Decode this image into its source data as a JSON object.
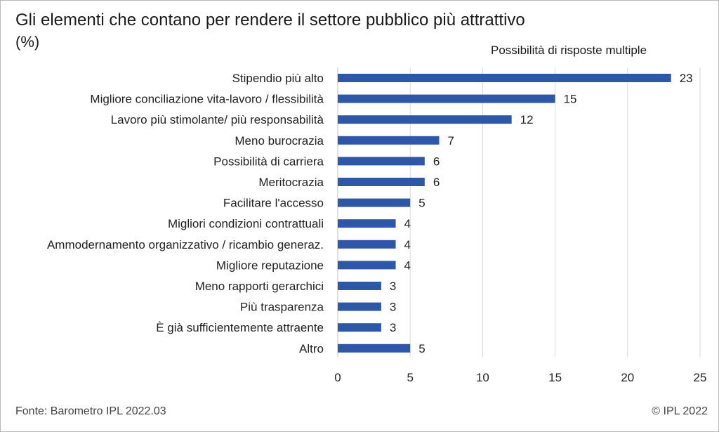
{
  "header": {
    "title": "Gli elementi che contano per rendere il settore pubblico più attrattivo",
    "unit": "(%)",
    "note": "Possibilità di risposte multiple"
  },
  "footer": {
    "source": "Fonte: Barometro IPL 2022.03",
    "copyright": "© IPL 2022"
  },
  "colors": {
    "bar": "#2E57A7",
    "grid": "#d9d9d9",
    "axis": "#bfbfbf"
  },
  "chart_data": {
    "type": "bar",
    "orientation": "horizontal",
    "categories": [
      "Stipendio più alto",
      "Migliore conciliazione vita-lavoro / flessibilità",
      "Lavoro più stimolante/ più responsabilità",
      "Meno burocrazia",
      "Possibilità di carriera",
      "Meritocrazia",
      "Facilitare l'accesso",
      "Migliori condizioni contrattuali",
      "Ammodernamento organizzativo / ricambio generaz.",
      "Migliore reputazione",
      "Meno rapporti gerarchici",
      "Più trasparenza",
      "È già sufficientemente attraente",
      "Altro"
    ],
    "values": [
      23,
      15,
      12,
      7,
      6,
      6,
      5,
      4,
      4,
      4,
      3,
      3,
      3,
      5
    ],
    "xlim": [
      0,
      25
    ],
    "xticks": [
      0,
      5,
      10,
      15,
      20,
      25
    ],
    "grid": true,
    "data_labels": true
  }
}
